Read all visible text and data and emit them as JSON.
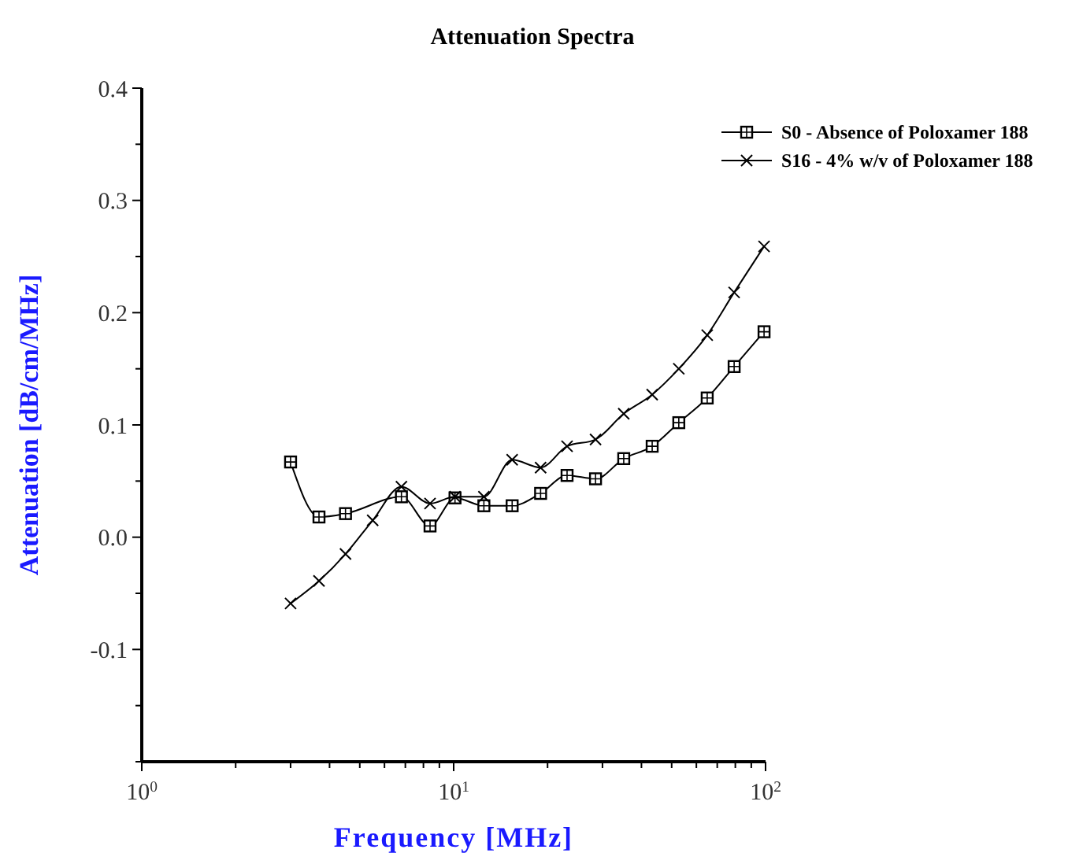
{
  "chart_data": {
    "type": "line",
    "title": "Attenuation Spectra",
    "xlabel": "Frequency [MHz]",
    "ylabel": "Attenuation [dB/cm/MHz]",
    "log": "x",
    "legend": "top right",
    "grid": false,
    "xlim": [
      1,
      100
    ],
    "xticks": [
      {
        "value": 1,
        "label": "10$^{0}$"
      },
      {
        "value": 2,
        "label": null
      },
      {
        "value": 3,
        "label": null
      },
      {
        "value": 4,
        "label": null
      },
      {
        "value": 5,
        "label": null
      },
      {
        "value": 6,
        "label": null
      },
      {
        "value": 7,
        "label": null
      },
      {
        "value": 8,
        "label": null
      },
      {
        "value": 9,
        "label": null
      },
      {
        "value": 10,
        "label": "10$^{1}$"
      },
      {
        "value": 20,
        "label": null
      },
      {
        "value": 30,
        "label": null
      },
      {
        "value": 40,
        "label": null
      },
      {
        "value": 50,
        "label": null
      },
      {
        "value": 60,
        "label": null
      },
      {
        "value": 70,
        "label": null
      },
      {
        "value": 80,
        "label": null
      },
      {
        "value": 90,
        "label": null
      },
      {
        "value": 100,
        "label": "10$^{2}$"
      }
    ],
    "ylim": [
      -0.2,
      0.4
    ],
    "yticks": [
      {
        "value": -0.2,
        "label": null
      },
      {
        "value": -0.15,
        "label": null
      },
      {
        "value": -0.1,
        "label": "-0.1"
      },
      {
        "value": -0.05,
        "label": null
      },
      {
        "value": 0,
        "label": "0.0"
      },
      {
        "value": 0.05,
        "label": null
      },
      {
        "value": 0.1,
        "label": "0.1"
      },
      {
        "value": 0.15,
        "label": null
      },
      {
        "value": 0.2,
        "label": "0.2"
      },
      {
        "value": 0.25,
        "label": null
      },
      {
        "value": 0.3,
        "label": "0.3"
      },
      {
        "value": 0.35,
        "label": null
      },
      {
        "value": 0.4,
        "label": "0.4"
      }
    ],
    "series": [
      {
        "name": "S0 - Absence of Poloxamer 188",
        "color": "#000000",
        "marker": "square",
        "x": [
          3,
          3.7,
          4.5,
          6.8,
          8.4,
          10.1,
          12.5,
          15.4,
          19,
          23.1,
          28.5,
          35.1,
          43.3,
          52.7,
          65,
          79.3,
          98.9
        ],
        "values": [
          0.067,
          0.018,
          0.021,
          0.036,
          0.01,
          0.035,
          0.028,
          0.028,
          0.039,
          0.055,
          0.052,
          0.07,
          0.081,
          0.102,
          0.124,
          0.152,
          0.183
        ]
      },
      {
        "name": "S16 - 4% w/v of Poloxamer 188",
        "color": "#000000",
        "marker": "cross",
        "x": [
          3,
          3.7,
          4.5,
          5.5,
          6.8,
          8.4,
          10.1,
          12.5,
          15.4,
          19,
          23.1,
          28.5,
          35.1,
          43.3,
          52.7,
          65,
          79.3,
          98.9
        ],
        "values": [
          -0.059,
          -0.039,
          -0.015,
          0.015,
          0.045,
          0.03,
          0.036,
          0.036,
          0.069,
          0.062,
          0.081,
          0.087,
          0.11,
          0.127,
          0.15,
          0.18,
          0.218,
          0.259
        ]
      }
    ]
  }
}
